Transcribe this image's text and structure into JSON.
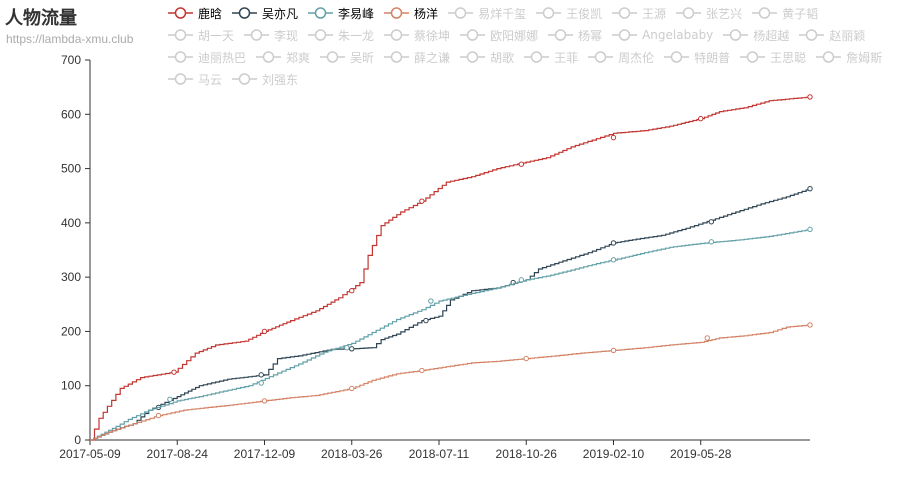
{
  "chart_data": {
    "type": "line",
    "title": "人物流量",
    "subtitle": "https://lambda-xmu.club",
    "xlabel": "",
    "ylabel": "",
    "ylim": [
      0,
      700
    ],
    "yticks": [
      0,
      100,
      200,
      300,
      400,
      500,
      600,
      700
    ],
    "x_start": "2017-05-09",
    "x_end": "2019-10-09",
    "xticks": [
      "2017-05-09",
      "2017-08-24",
      "2017-12-09",
      "2018-03-26",
      "2018-07-11",
      "2018-10-26",
      "2019-02-10",
      "2019-05-28"
    ],
    "grid": false,
    "legend_position": "top",
    "series": [
      {
        "name": "鹿晗",
        "color": "#c23531",
        "points": [
          [
            "2017-05-09",
            0
          ],
          [
            "2017-05-20",
            40
          ],
          [
            "2017-06-15",
            95
          ],
          [
            "2017-07-10",
            115
          ],
          [
            "2017-08-20",
            125
          ],
          [
            "2017-09-15",
            160
          ],
          [
            "2017-10-10",
            175
          ],
          [
            "2017-11-15",
            182
          ],
          [
            "2017-12-09",
            200
          ],
          [
            "2018-01-10",
            220
          ],
          [
            "2018-02-10",
            238
          ],
          [
            "2018-03-10",
            262
          ],
          [
            "2018-04-05",
            290
          ],
          [
            "2018-04-15",
            340
          ],
          [
            "2018-05-01",
            395
          ],
          [
            "2018-05-25",
            420
          ],
          [
            "2018-06-20",
            440
          ],
          [
            "2018-07-20",
            475
          ],
          [
            "2018-08-20",
            485
          ],
          [
            "2018-09-20",
            500
          ],
          [
            "2018-10-26",
            512
          ],
          [
            "2018-11-20",
            520
          ],
          [
            "2018-12-20",
            540
          ],
          [
            "2019-01-20",
            555
          ],
          [
            "2019-02-10",
            565
          ],
          [
            "2019-03-20",
            570
          ],
          [
            "2019-04-20",
            578
          ],
          [
            "2019-05-28",
            592
          ],
          [
            "2019-06-20",
            605
          ],
          [
            "2019-07-20",
            612
          ],
          [
            "2019-08-20",
            625
          ],
          [
            "2019-10-09",
            632
          ]
        ],
        "markers": [
          [
            "2017-08-20",
            125
          ],
          [
            "2017-12-09",
            200
          ],
          [
            "2018-03-26",
            275
          ],
          [
            "2018-06-20",
            440
          ],
          [
            "2018-10-20",
            508
          ],
          [
            "2019-02-10",
            557
          ],
          [
            "2019-05-28",
            592
          ],
          [
            "2019-10-09",
            632
          ]
        ]
      },
      {
        "name": "吴亦凡",
        "color": "#2f4554",
        "points": [
          [
            "2017-05-09",
            0
          ],
          [
            "2017-06-10",
            20
          ],
          [
            "2017-07-01",
            30
          ],
          [
            "2017-07-20",
            55
          ],
          [
            "2017-08-24",
            80
          ],
          [
            "2017-09-20",
            100
          ],
          [
            "2017-10-25",
            112
          ],
          [
            "2017-12-09",
            120
          ],
          [
            "2017-12-25",
            150
          ],
          [
            "2018-01-20",
            155
          ],
          [
            "2018-03-01",
            167
          ],
          [
            "2018-03-26",
            168
          ],
          [
            "2018-04-20",
            170
          ],
          [
            "2018-05-01",
            185
          ],
          [
            "2018-05-20",
            195
          ],
          [
            "2018-06-20",
            220
          ],
          [
            "2018-07-11",
            228
          ],
          [
            "2018-07-25",
            258
          ],
          [
            "2018-08-20",
            275
          ],
          [
            "2018-09-20",
            280
          ],
          [
            "2018-10-26",
            295
          ],
          [
            "2018-11-10",
            315
          ],
          [
            "2018-12-10",
            330
          ],
          [
            "2019-01-10",
            345
          ],
          [
            "2019-02-10",
            363
          ],
          [
            "2019-03-10",
            370
          ],
          [
            "2019-04-10",
            377
          ],
          [
            "2019-05-10",
            390
          ],
          [
            "2019-06-10",
            405
          ],
          [
            "2019-07-10",
            420
          ],
          [
            "2019-08-10",
            435
          ],
          [
            "2019-09-10",
            448
          ],
          [
            "2019-10-09",
            463
          ]
        ],
        "markers": [
          [
            "2017-08-01",
            60
          ],
          [
            "2017-12-05",
            120
          ],
          [
            "2018-03-26",
            168
          ],
          [
            "2018-06-25",
            220
          ],
          [
            "2018-10-10",
            290
          ],
          [
            "2019-02-10",
            363
          ],
          [
            "2019-06-10",
            402
          ],
          [
            "2019-10-09",
            463
          ]
        ]
      },
      {
        "name": "李易峰",
        "color": "#61a0a8",
        "points": [
          [
            "2017-05-09",
            0
          ],
          [
            "2017-06-10",
            25
          ],
          [
            "2017-06-25",
            38
          ],
          [
            "2017-07-20",
            55
          ],
          [
            "2017-08-24",
            72
          ],
          [
            "2017-09-20",
            80
          ],
          [
            "2017-10-20",
            90
          ],
          [
            "2017-11-20",
            100
          ],
          [
            "2017-12-20",
            120
          ],
          [
            "2018-01-20",
            140
          ],
          [
            "2018-02-20",
            162
          ],
          [
            "2018-03-26",
            178
          ],
          [
            "2018-04-20",
            198
          ],
          [
            "2018-05-20",
            222
          ],
          [
            "2018-06-20",
            240
          ],
          [
            "2018-07-11",
            256
          ],
          [
            "2018-08-20",
            270
          ],
          [
            "2018-09-20",
            280
          ],
          [
            "2018-10-26",
            295
          ],
          [
            "2018-11-20",
            302
          ],
          [
            "2018-12-20",
            313
          ],
          [
            "2019-01-20",
            325
          ],
          [
            "2019-02-20",
            335
          ],
          [
            "2019-03-20",
            345
          ],
          [
            "2019-04-20",
            355
          ],
          [
            "2019-05-28",
            362
          ],
          [
            "2019-07-10",
            368
          ],
          [
            "2019-08-20",
            375
          ],
          [
            "2019-10-09",
            388
          ]
        ],
        "markers": [
          [
            "2017-08-15",
            75
          ],
          [
            "2017-12-05",
            105
          ],
          [
            "2018-03-20",
            170
          ],
          [
            "2018-07-01",
            256
          ],
          [
            "2018-10-20",
            295
          ],
          [
            "2019-02-10",
            332
          ],
          [
            "2019-06-10",
            365
          ],
          [
            "2019-10-09",
            388
          ]
        ]
      },
      {
        "name": "杨洋",
        "color": "#d48265",
        "points": [
          [
            "2017-05-09",
            0
          ],
          [
            "2017-06-01",
            15
          ],
          [
            "2017-07-01",
            30
          ],
          [
            "2017-08-01",
            45
          ],
          [
            "2017-09-01",
            55
          ],
          [
            "2017-10-01",
            60
          ],
          [
            "2017-11-01",
            65
          ],
          [
            "2017-12-09",
            72
          ],
          [
            "2018-01-10",
            78
          ],
          [
            "2018-02-10",
            82
          ],
          [
            "2018-03-26",
            95
          ],
          [
            "2018-04-20",
            110
          ],
          [
            "2018-05-20",
            122
          ],
          [
            "2018-06-20",
            128
          ],
          [
            "2018-07-20",
            135
          ],
          [
            "2018-08-20",
            142
          ],
          [
            "2018-09-20",
            145
          ],
          [
            "2018-10-26",
            150
          ],
          [
            "2018-12-01",
            155
          ],
          [
            "2019-01-01",
            160
          ],
          [
            "2019-02-10",
            165
          ],
          [
            "2019-03-20",
            170
          ],
          [
            "2019-04-20",
            175
          ],
          [
            "2019-05-28",
            180
          ],
          [
            "2019-06-20",
            188
          ],
          [
            "2019-07-20",
            192
          ],
          [
            "2019-08-20",
            198
          ],
          [
            "2019-09-10",
            208
          ],
          [
            "2019-10-09",
            212
          ]
        ],
        "markers": [
          [
            "2017-08-01",
            45
          ],
          [
            "2017-12-09",
            72
          ],
          [
            "2018-03-26",
            95
          ],
          [
            "2018-06-20",
            128
          ],
          [
            "2018-10-26",
            150
          ],
          [
            "2019-02-10",
            165
          ],
          [
            "2019-06-05",
            188
          ],
          [
            "2019-10-09",
            212
          ]
        ]
      }
    ],
    "inactive_series": [
      "易烊千玺",
      "王俊凯",
      "王源",
      "张艺兴",
      "黄子韬",
      "胡一天",
      "李现",
      "朱一龙",
      "蔡徐坤",
      "欧阳娜娜",
      "杨幂",
      "Angelababy",
      "杨超越",
      "赵丽颖",
      "迪丽热巴",
      "郑爽",
      "吴昕",
      "薛之谦",
      "胡歌",
      "王菲",
      "周杰伦",
      "特朗普",
      "王思聪",
      "詹姆斯",
      "马云",
      "刘强东"
    ],
    "inactive_color": "#cccccc",
    "axis_color": "#333333"
  }
}
